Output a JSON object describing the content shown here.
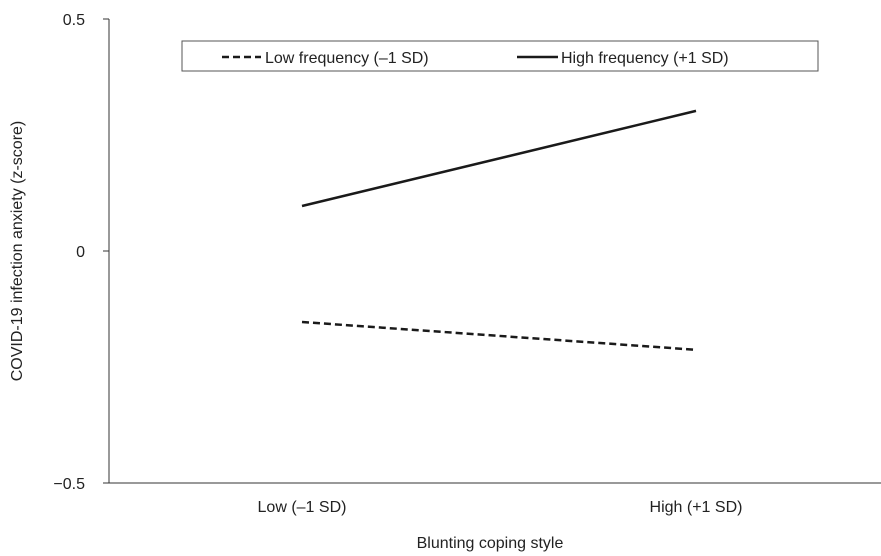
{
  "chart_data": {
    "type": "line",
    "title": "",
    "xlabel": "Blunting coping style",
    "ylabel": "COVID-19 infection anxiety (z-score)",
    "categories": [
      "Low (–1 SD)",
      "High (+1 SD)"
    ],
    "ylim": [
      -0.5,
      0.5
    ],
    "yticks": [
      {
        "value": 0.5,
        "label": "0.5"
      },
      {
        "value": 0,
        "label": "0"
      },
      {
        "value": -0.5,
        "label": "−0.5"
      }
    ],
    "grid": false,
    "legend_position": "top",
    "series": [
      {
        "name": "Low frequency (–1 SD)",
        "values": [
          -0.153,
          -0.213
        ],
        "style": "dashed",
        "color": "#1a1a1a"
      },
      {
        "name": "High frequency (+1 SD)",
        "values": [
          0.097,
          0.302
        ],
        "style": "solid",
        "color": "#1a1a1a"
      }
    ]
  }
}
